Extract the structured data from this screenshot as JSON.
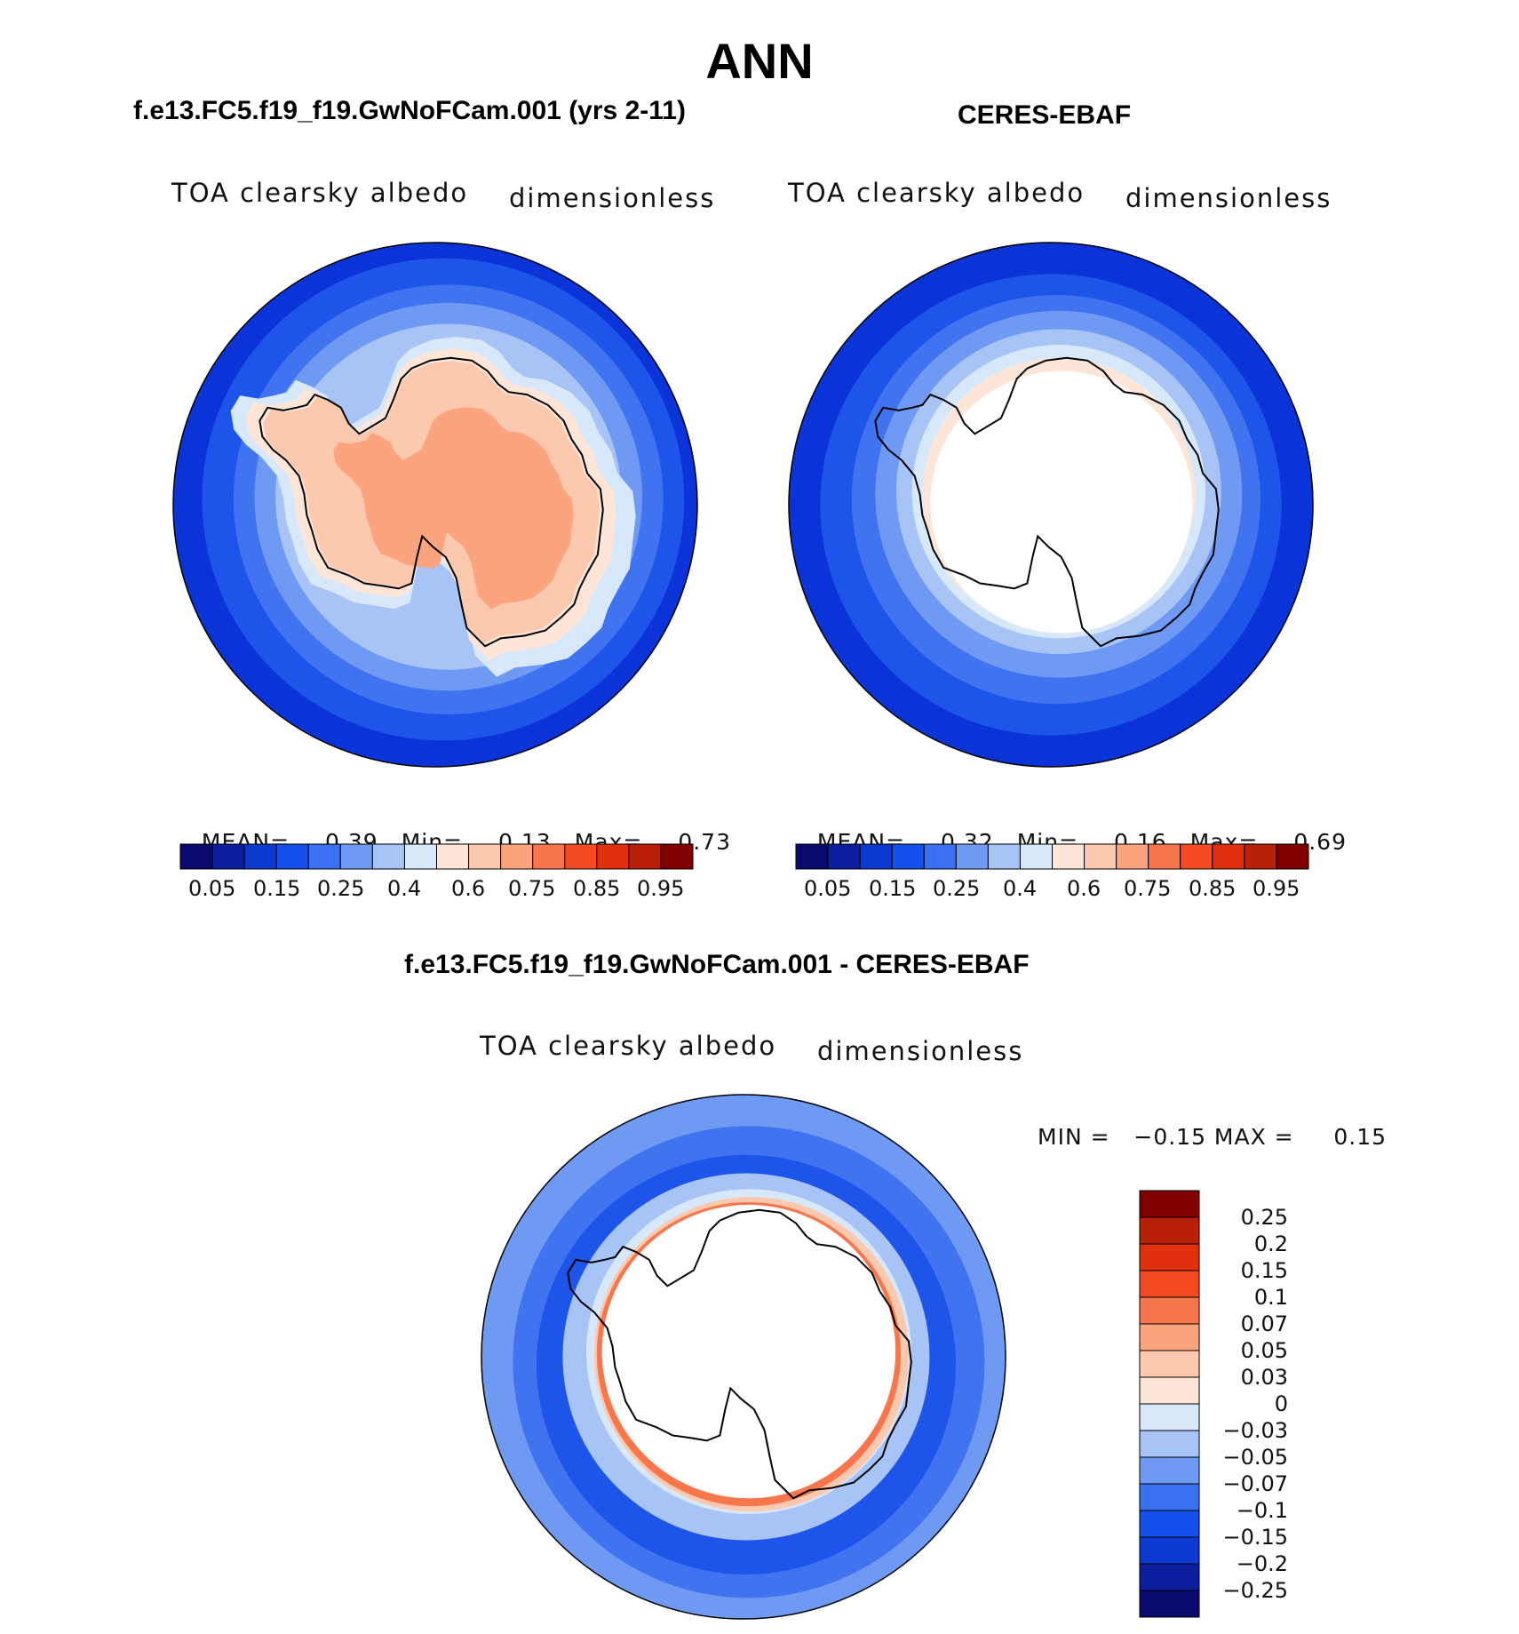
{
  "title": "ANN",
  "panels": [
    {
      "id": "model",
      "title": "f.e13.FC5.f19_f19.GwNoFCam.001 (yrs 2-11)",
      "variable": "TOA clearsky albedo",
      "units": "dimensionless",
      "stats": {
        "mean_label": "MEAN=",
        "mean": "0.39",
        "min_label": "Min=",
        "min": "0.13",
        "max_label": "Max=",
        "max": "0.73"
      }
    },
    {
      "id": "obs",
      "title": "CERES-EBAF",
      "variable": "TOA clearsky albedo",
      "units": "dimensionless",
      "stats": {
        "mean_label": "MEAN=",
        "mean": "0.32",
        "min_label": "Min=",
        "min": "0.16",
        "max_label": "Max=",
        "max": "0.69"
      }
    },
    {
      "id": "diff",
      "title": "f.e13.FC5.f19_f19.GwNoFCam.001 - CERES-EBAF",
      "variable": "TOA clearsky albedo",
      "units": "dimensionless",
      "stats": {
        "text": "MIN =   −0.15 MAX =     0.15"
      }
    }
  ],
  "colorbar_abs": {
    "colors": [
      "#0a0a6e",
      "#0a1e9e",
      "#0c3ad0",
      "#1650ea",
      "#3a70f2",
      "#6f9af4",
      "#a8c4f6",
      "#d8e8fb",
      "#fde6d8",
      "#fcc8ae",
      "#fba47e",
      "#f8764c",
      "#f44a22",
      "#e0300c",
      "#b82008",
      "#800000"
    ],
    "tick_labels": [
      "0.05",
      "0.15",
      "0.25",
      "0.4",
      "0.6",
      "0.75",
      "0.85",
      "0.95"
    ]
  },
  "colorbar_diff": {
    "colors": [
      "#800000",
      "#b82008",
      "#e0300c",
      "#f44a22",
      "#f8764c",
      "#fba47e",
      "#fcc8ae",
      "#fde6d8",
      "#d8e8fb",
      "#a8c4f6",
      "#6f9af4",
      "#3a70f2",
      "#1650ea",
      "#0c3ad0",
      "#0a1e9e",
      "#0a0a6e"
    ],
    "tick_labels": [
      "0.25",
      "0.2",
      "0.15",
      "0.1",
      "0.07",
      "0.05",
      "0.03",
      "0",
      "−0.03",
      "−0.05",
      "−0.07",
      "−0.1",
      "−0.15",
      "−0.2",
      "−0.25"
    ]
  },
  "map_colors": {
    "ocean_deep": "#0b34d8",
    "ocean_mid": "#1d55ea",
    "ocean_light": "#3f73f0",
    "ice_1": "#6f9af4",
    "ice_2": "#a8c4f6",
    "ice_3": "#d8e8fb",
    "land_low": "#fde6d8",
    "land_mid": "#fcc8ae",
    "land_high": "#fba47e",
    "diff_pos_1": "#fcc8ae",
    "diff_pos_2": "#f8764c",
    "diff_pos_3": "#e0300c",
    "white": "#ffffff"
  }
}
